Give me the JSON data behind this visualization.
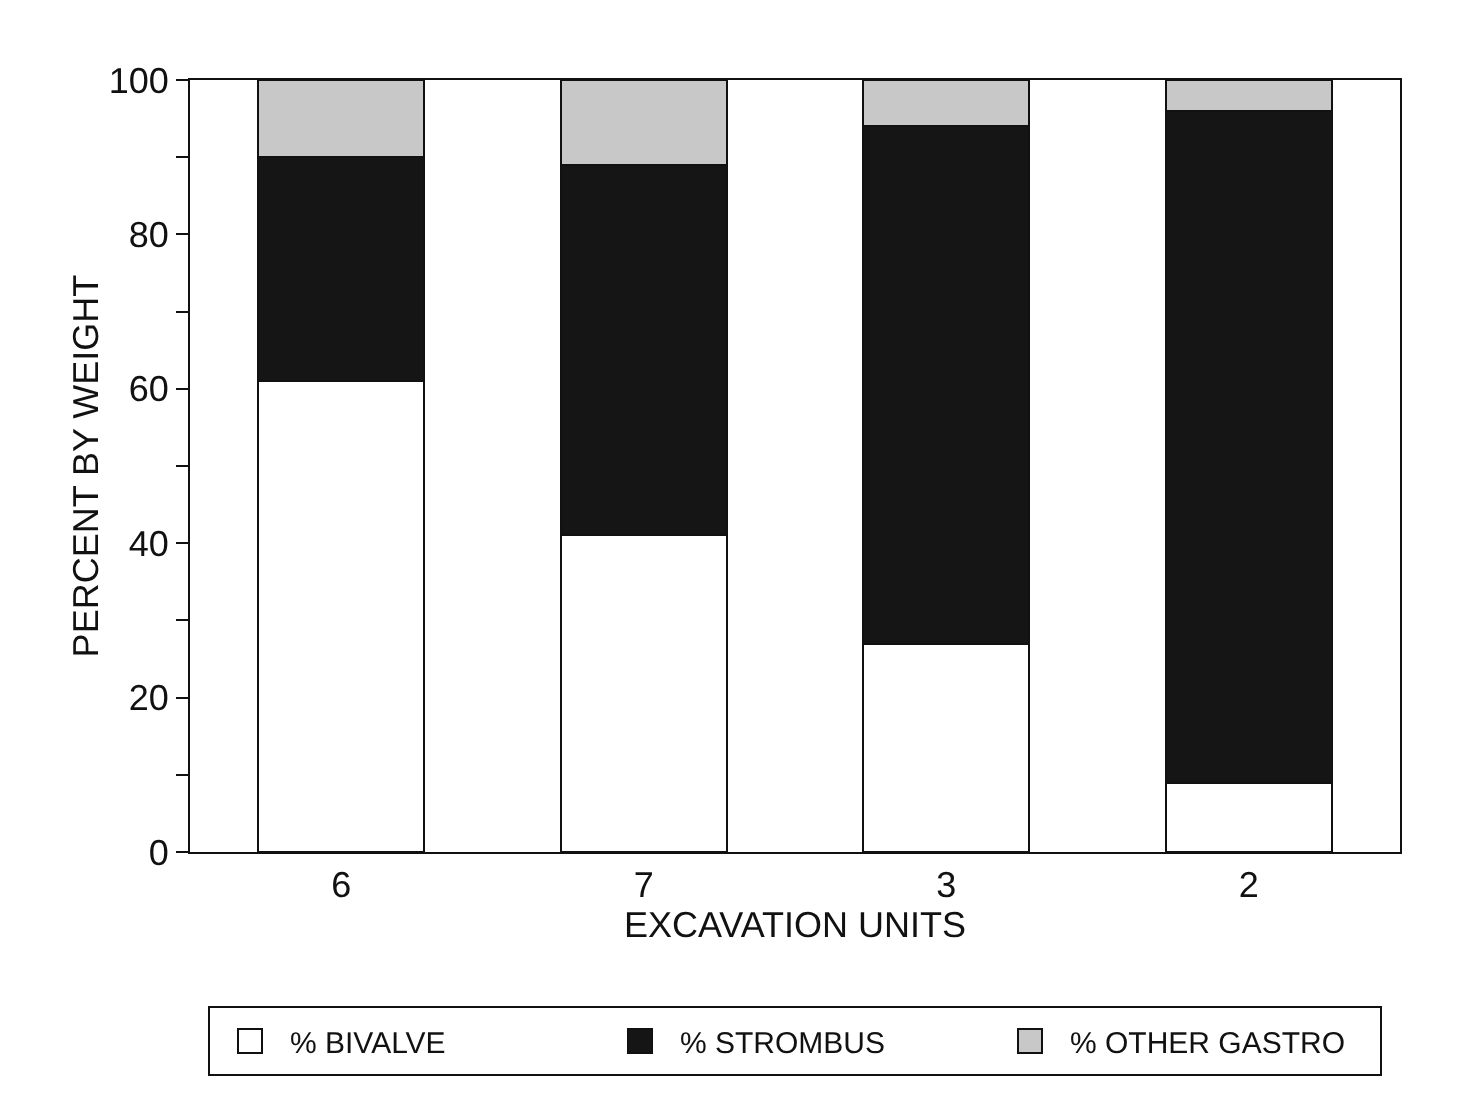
{
  "chart_data": {
    "type": "bar",
    "stacked": true,
    "xlabel": "EXCAVATION UNITS",
    "ylabel": "PERCENT BY WEIGHT",
    "categories": [
      "6",
      "7",
      "3",
      "2"
    ],
    "series": [
      {
        "name": "% BIVALVE",
        "color": "#ffffff",
        "values": [
          61,
          41,
          27,
          9
        ]
      },
      {
        "name": "% STROMBUS",
        "color": "#151515",
        "values": [
          29,
          48,
          67,
          87
        ]
      },
      {
        "name": "% OTHER GASTRO",
        "color": "#c8c8c8",
        "values": [
          10,
          11,
          6,
          4
        ]
      }
    ],
    "ylim": [
      0,
      100
    ],
    "yticks": [
      0,
      {
        "value": 10,
        "label": null
      },
      20,
      {
        "value": 30,
        "label": null
      },
      40,
      {
        "value": 50,
        "label": null
      },
      60,
      {
        "value": 70,
        "label": null
      },
      80,
      {
        "value": 90,
        "label": null
      },
      100
    ],
    "grid": false,
    "legend": "bottom"
  }
}
